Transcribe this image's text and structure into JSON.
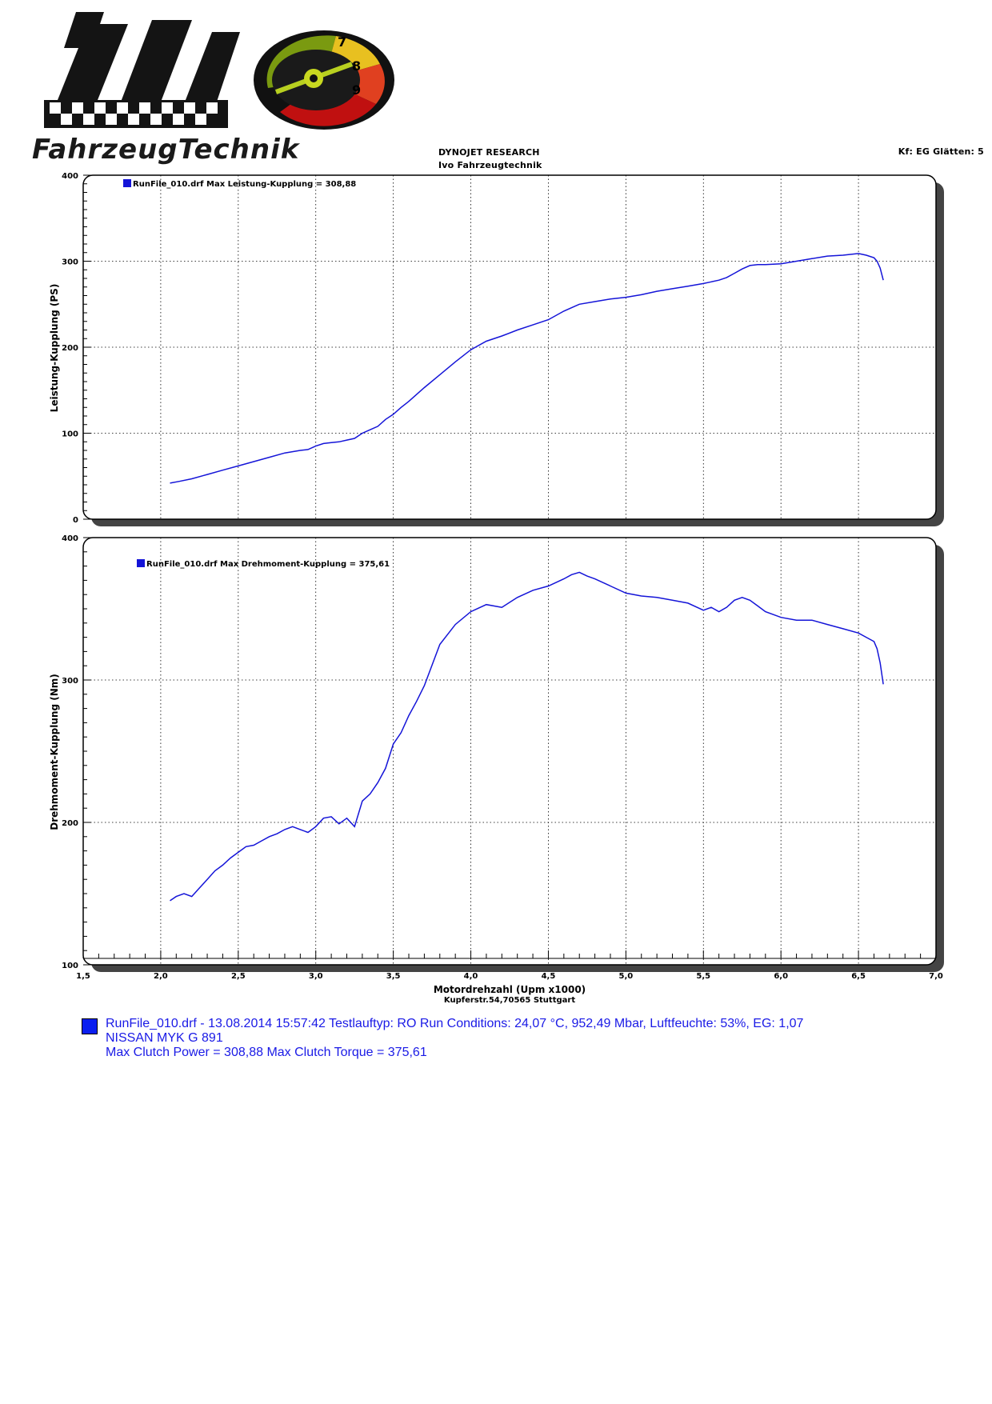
{
  "logo": {
    "text": "FahrzeugTechnik",
    "gauge_numbers": [
      "7",
      "8",
      "9"
    ]
  },
  "header": {
    "title": "DYNOJET RESEARCH",
    "subtitle": "Ivo Fahrzeugtechnik",
    "right_info": "Kf: EG  Glätten: 5"
  },
  "chart_data": [
    {
      "type": "line",
      "ylabel": "Leistung-Kupplung (PS)",
      "xlim": [
        1.5,
        7.0
      ],
      "ylim": [
        0,
        400
      ],
      "yticks": [
        "0",
        "100",
        "200",
        "300",
        "400"
      ],
      "grid": true,
      "legend_placement": "top-left",
      "color": "#1414d8",
      "series": [
        {
          "name": "RunFile_010.drf Max Leistung-Kupplung = 308,88",
          "x": [
            2.06,
            2.12,
            2.2,
            2.3,
            2.4,
            2.5,
            2.6,
            2.7,
            2.8,
            2.9,
            2.95,
            3.0,
            3.05,
            3.1,
            3.15,
            3.2,
            3.25,
            3.3,
            3.35,
            3.4,
            3.45,
            3.5,
            3.55,
            3.6,
            3.65,
            3.7,
            3.8,
            3.9,
            4.0,
            4.1,
            4.2,
            4.3,
            4.4,
            4.5,
            4.6,
            4.7,
            4.8,
            4.9,
            5.0,
            5.1,
            5.2,
            5.3,
            5.4,
            5.5,
            5.55,
            5.6,
            5.65,
            5.7,
            5.75,
            5.8,
            5.85,
            5.9,
            6.0,
            6.1,
            6.2,
            6.3,
            6.4,
            6.5,
            6.55,
            6.6,
            6.62,
            6.64,
            6.66
          ],
          "y": [
            42,
            44,
            47,
            52,
            57,
            62,
            67,
            72,
            77,
            80,
            81,
            85,
            88,
            89,
            90,
            92,
            94,
            100,
            104,
            108,
            116,
            122,
            130,
            137,
            145,
            153,
            168,
            183,
            197,
            207,
            213,
            220,
            226,
            232,
            242,
            250,
            253,
            256,
            258,
            261,
            265,
            268,
            271,
            274,
            276,
            278,
            281,
            286,
            291,
            295,
            296,
            296,
            297,
            300,
            303,
            306,
            307,
            308.9,
            307,
            304,
            300,
            292,
            278
          ]
        }
      ]
    },
    {
      "type": "line",
      "xlabel": "Motordrehzahl (Upm x1000)",
      "ylabel": "Drehmoment-Kupplung (Nm)",
      "xlim": [
        1.5,
        7.0
      ],
      "ylim": [
        100,
        400
      ],
      "xticks": [
        "1,5",
        "2,0",
        "2,5",
        "3,0",
        "3,5",
        "4,0",
        "4,5",
        "5,0",
        "5,5",
        "6,0",
        "6,5",
        "7,0"
      ],
      "yticks": [
        "100",
        "200",
        "300",
        "400"
      ],
      "grid": true,
      "legend_placement": "top-left",
      "color": "#1414d8",
      "series": [
        {
          "name": "RunFile_010.drf Max Drehmoment-Kupplung = 375,61",
          "x": [
            2.06,
            2.1,
            2.15,
            2.2,
            2.25,
            2.3,
            2.35,
            2.4,
            2.45,
            2.5,
            2.55,
            2.6,
            2.65,
            2.7,
            2.75,
            2.8,
            2.85,
            2.9,
            2.95,
            3.0,
            3.05,
            3.1,
            3.15,
            3.2,
            3.25,
            3.3,
            3.35,
            3.4,
            3.45,
            3.5,
            3.55,
            3.6,
            3.65,
            3.7,
            3.8,
            3.9,
            4.0,
            4.1,
            4.2,
            4.3,
            4.4,
            4.5,
            4.6,
            4.65,
            4.7,
            4.75,
            4.8,
            4.9,
            5.0,
            5.1,
            5.2,
            5.3,
            5.4,
            5.5,
            5.55,
            5.6,
            5.65,
            5.7,
            5.75,
            5.8,
            5.85,
            5.9,
            6.0,
            6.1,
            6.2,
            6.3,
            6.4,
            6.5,
            6.55,
            6.6,
            6.62,
            6.64,
            6.66
          ],
          "y": [
            145,
            148,
            150,
            148,
            154,
            160,
            166,
            170,
            175,
            179,
            183,
            184,
            187,
            190,
            192,
            195,
            197,
            195,
            193,
            197,
            203,
            204,
            199,
            203,
            197,
            215,
            220,
            228,
            238,
            255,
            263,
            275,
            285,
            296,
            325,
            339,
            348,
            353,
            351,
            358,
            363,
            366,
            371,
            374,
            375.6,
            373,
            371,
            366,
            361,
            359,
            358,
            356,
            354,
            349,
            351,
            348,
            351,
            356,
            358,
            356,
            352,
            348,
            344,
            342,
            342,
            339,
            336,
            333,
            330,
            327,
            322,
            312,
            297
          ]
        }
      ]
    }
  ],
  "footer": {
    "line1": "RunFile_010.drf - 13.08.2014 15:57:42  Testlauftyp: RO  Run Conditions: 24,07 °C, 952,49 Mbar,  Luftfeuchte: 53%, EG: 1,07",
    "line2": "NISSAN MYK G 891",
    "line3": "Max Clutch Power = 308,88  Max Clutch Torque = 375,61"
  },
  "address": "Kupferstr.54,70565 Stuttgart"
}
